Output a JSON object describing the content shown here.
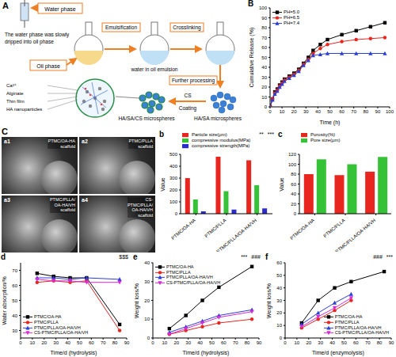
{
  "diagram": {
    "panel": "A",
    "water_phase": "Water phase",
    "note": [
      "The water phase was slowly",
      "dripped into oil phase"
    ],
    "oil_phase": "Oil phase",
    "step1": "Emulsification",
    "step2": "Crosslinking",
    "emulsion": "water in oil emulsion",
    "step3": "Further processing",
    "product1": "HA/SA microspheres",
    "coat_top": "CS",
    "coat_bottom": "Coating",
    "product2": "HA/SA/CS microspheres",
    "components": [
      "Ca²⁺",
      "Alginate",
      "Thin film",
      "HA nanoparticles"
    ]
  },
  "images": {
    "panel": "C",
    "items": [
      {
        "tag": "a1",
        "caption": [
          "PTMC/OA-HA",
          "scaffold"
        ]
      },
      {
        "tag": "a2",
        "caption": [
          "PTMC/PLLA",
          "scaffold"
        ]
      },
      {
        "tag": "a3",
        "caption": [
          "PTMC/PLLA/",
          "OA-HA/VH",
          "scaffold"
        ]
      },
      {
        "tag": "a4",
        "caption": [
          "CS-",
          "PTMC/PLLA/",
          "OA-HA/VH",
          "scaffold"
        ]
      }
    ]
  },
  "chart_data": [
    {
      "panel": "B",
      "type": "line",
      "x_label": "Time (h)",
      "y_label": "Cumulative Release (%)",
      "x": [
        0,
        2,
        4,
        6,
        8,
        10,
        12,
        16,
        20,
        24,
        28,
        32,
        36,
        42,
        48,
        60,
        72,
        84,
        96
      ],
      "series": [
        {
          "name": "PH=5.0",
          "color": "#000000",
          "marker": "square",
          "values": [
            0,
            8,
            15,
            18,
            22,
            25,
            28,
            31,
            34,
            38,
            44,
            50,
            57,
            63,
            68,
            73,
            77,
            81,
            85
          ]
        },
        {
          "name": "PH=6.5",
          "color": "#e8251f",
          "marker": "circle",
          "values": [
            0,
            8,
            14,
            17,
            21,
            24,
            27,
            30,
            33,
            37,
            43,
            48,
            54,
            59,
            63,
            66,
            68,
            69,
            70
          ]
        },
        {
          "name": "PH=7.4",
          "color": "#2b3fd6",
          "marker": "triangle",
          "values": [
            0,
            7,
            13,
            16,
            20,
            23,
            26,
            29,
            32,
            36,
            42,
            47,
            52,
            53,
            54,
            54,
            54,
            54,
            54
          ]
        }
      ],
      "xlim": [
        0,
        100
      ],
      "xticks": [
        0,
        10,
        20,
        30,
        40,
        50,
        60,
        70,
        80,
        90,
        100
      ],
      "ylim": [
        0,
        100
      ],
      "yticks": [
        0,
        10,
        20,
        30,
        40,
        50,
        60,
        70,
        80,
        90,
        100
      ],
      "legend": "upper left"
    },
    {
      "panel": "b",
      "type": "bar",
      "y_label": "Value",
      "categories": [
        "PTMC/OA-HA",
        "PTMC/PLLA",
        "PTMC/PLLA/OA-HA/VH"
      ],
      "series": [
        {
          "name": "Particle size(μm)",
          "color": "#e8251f",
          "values": [
            300,
            480,
            450
          ]
        },
        {
          "name": "compressive modulus(MPa)",
          "color": "#36c236",
          "values": [
            120,
            190,
            240
          ]
        },
        {
          "name": "compressive strength(MPa)",
          "color": "#2a2acf",
          "values": [
            20,
            35,
            45
          ]
        }
      ],
      "ylim": [
        0,
        500
      ],
      "yticks": [
        0,
        100,
        200,
        300,
        400,
        500
      ],
      "legend": "top",
      "annotations": [
        "**",
        "***"
      ]
    },
    {
      "panel": "c",
      "type": "bar",
      "y_label": "Value",
      "categories": [
        "PTMC/OA-HA",
        "PTMC/PLLA",
        "PTMC/PLLA/OA-HA/VH"
      ],
      "series": [
        {
          "name": "Porosity(%)",
          "color": "#e8251f",
          "values": [
            80,
            78,
            85
          ]
        },
        {
          "name": "Pore size(μm)",
          "color": "#36c236",
          "values": [
            110,
            100,
            115
          ]
        }
      ],
      "ylim": [
        0,
        120
      ],
      "yticks": [
        0,
        20,
        40,
        60,
        80,
        100,
        120
      ],
      "legend": "top"
    },
    {
      "panel": "d",
      "type": "line",
      "x_label": "Time/d (hydrolysis)",
      "y_label": "Water absorption/%",
      "x": [
        14,
        28,
        42,
        56,
        84
      ],
      "series": [
        {
          "name": "PTMC/OA-HA",
          "color": "#000000",
          "marker": "square",
          "values": [
            68,
            66,
            65,
            65,
            34
          ]
        },
        {
          "name": "PTMC/PLLA",
          "color": "#e8251f",
          "marker": "circle",
          "values": [
            62,
            63,
            62,
            63,
            30
          ]
        },
        {
          "name": "PTMC/PLLA/OA-HA/VH",
          "color": "#2b3fd6",
          "marker": "triangle",
          "values": [
            65,
            65,
            64,
            65,
            64
          ]
        },
        {
          "name": "CS-PTMC/PLLA/OA-HA/VH",
          "color": "#d62bd6",
          "marker": "triangle-down",
          "values": [
            64,
            63,
            63,
            62,
            62
          ]
        }
      ],
      "xlim": [
        0,
        90
      ],
      "xticks": [
        0,
        10,
        20,
        30,
        40,
        50,
        60,
        70,
        80,
        90
      ],
      "ylim": [
        25,
        75
      ],
      "yticks": [
        30,
        40,
        50,
        60,
        70
      ],
      "legend": "lower left",
      "annotations": [
        "$$$"
      ]
    },
    {
      "panel": "e",
      "type": "line",
      "x_label": "Time/d (hydrolysis)",
      "y_label": "Weight loss/%",
      "x": [
        14,
        28,
        42,
        56,
        84
      ],
      "series": [
        {
          "name": "PTMC/OA-HA",
          "color": "#000000",
          "marker": "square",
          "values": [
            5,
            12,
            20,
            27,
            38
          ]
        },
        {
          "name": "PTMC/PLLA",
          "color": "#e8251f",
          "marker": "circle",
          "values": [
            2,
            4,
            6,
            8,
            10
          ]
        },
        {
          "name": "PTMC/PLLA/OA-HA/VH",
          "color": "#2b3fd6",
          "marker": "triangle",
          "values": [
            3,
            6,
            9,
            12,
            15
          ]
        },
        {
          "name": "CS-PTMC/PLLA/OA-HA/VH",
          "color": "#d62bd6",
          "marker": "triangle-down",
          "values": [
            2,
            5,
            8,
            11,
            14
          ]
        }
      ],
      "xlim": [
        0,
        90
      ],
      "xticks": [
        0,
        10,
        20,
        30,
        40,
        50,
        60,
        70,
        80,
        90
      ],
      "ylim": [
        0,
        40
      ],
      "yticks": [
        0,
        10,
        20,
        30,
        40
      ],
      "legend": "upper left",
      "annotations": [
        "***",
        "###"
      ]
    },
    {
      "panel": "f",
      "type": "line",
      "x_label": "Time/d (enzymolysis)",
      "y_label": "Weight loss/%",
      "x": [
        14,
        28,
        42,
        56,
        84
      ],
      "series": [
        {
          "name": "PTMC/OA-HA",
          "color": "#000000",
          "marker": "square",
          "values": [
            12,
            30,
            40,
            45,
            53
          ]
        },
        {
          "name": "PTMC/PLLA",
          "color": "#e8251f",
          "marker": "circle",
          "values": [
            8,
            15,
            22,
            30,
            null
          ]
        },
        {
          "name": "PTMC/PLLA/OA-HA/VH",
          "color": "#2b3fd6",
          "marker": "triangle",
          "values": [
            11,
            20,
            28,
            35,
            null
          ]
        },
        {
          "name": "CS-PTMC/PLLA/OA-HA/VH",
          "color": "#d62bd6",
          "marker": "triangle-down",
          "values": [
            9,
            17,
            24,
            32,
            null
          ]
        }
      ],
      "xlim": [
        0,
        90
      ],
      "xticks": [
        0,
        10,
        20,
        30,
        40,
        50,
        60,
        70,
        80,
        90
      ],
      "ylim": [
        0,
        60
      ],
      "yticks": [
        0,
        10,
        20,
        30,
        40,
        50,
        60
      ],
      "legend": "lower right",
      "annotations": [
        "###",
        "***"
      ]
    }
  ]
}
